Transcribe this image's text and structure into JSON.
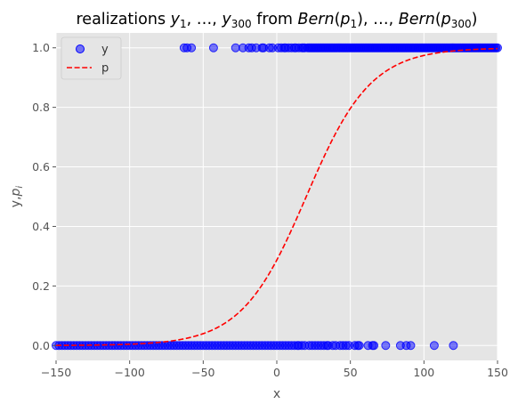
{
  "chart_data": {
    "type": "scatter",
    "title": {
      "prefix": "realizations ",
      "y_first": "y",
      "y_first_sub": "1",
      "sep1": ", …, ",
      "y_last": "y",
      "y_last_sub": "300",
      "mid": " from ",
      "bern1": "Bern",
      "p1_open": "(",
      "p1": "p",
      "p1_sub": "1",
      "p1_close": ")",
      "sep2": ", …, ",
      "bern2": "Bern",
      "p2_open": "(",
      "p2": "p",
      "p2_sub": "300",
      "p2_close": ")"
    },
    "xlabel": "x",
    "ylabel": {
      "part1": "y,",
      "part2": "p",
      "sub": "i"
    },
    "xlim": [
      -150,
      150
    ],
    "ylim": [
      -0.05,
      1.05
    ],
    "xticks": [
      -150,
      -100,
      -50,
      0,
      50,
      100,
      150
    ],
    "xtick_labels": [
      "−150",
      "−100",
      "−50",
      "0",
      "50",
      "100",
      "150"
    ],
    "yticks": [
      0.0,
      0.2,
      0.4,
      0.6,
      0.8,
      1.0
    ],
    "ytick_labels": [
      "0.0",
      "0.2",
      "0.4",
      "0.6",
      "0.8",
      "1.0"
    ],
    "grid": true,
    "legend_position": "top-left",
    "legend": [
      {
        "label": "y",
        "kind": "marker"
      },
      {
        "label": "p",
        "kind": "dashed-line"
      }
    ],
    "colors": {
      "points": "#0000ff",
      "curve": "#ff0000",
      "background": "#e5e5e5",
      "grid": "#ffffff"
    },
    "logistic": {
      "midpoint": 20,
      "scale": 22
    },
    "series": [
      {
        "name": "y",
        "kind": "scatter",
        "ones": [
          -63,
          -61,
          -58,
          -43,
          -28,
          -23,
          -19,
          -17,
          -14,
          -10,
          -9,
          -5,
          -3,
          1,
          3,
          5,
          6,
          8,
          10,
          12,
          13,
          15,
          17,
          18,
          19,
          21,
          22,
          23,
          24,
          25,
          26,
          27,
          28,
          29,
          30,
          31,
          32,
          33,
          34,
          35,
          36,
          37,
          38,
          39,
          40,
          41,
          42,
          43,
          44,
          45,
          46,
          47,
          48,
          49,
          50,
          51,
          52,
          53,
          54,
          55,
          56,
          57,
          58,
          59,
          60,
          61,
          62,
          63,
          64,
          65,
          66,
          67,
          68,
          69,
          70,
          71,
          72,
          73,
          74,
          75,
          76,
          77,
          78,
          79,
          80,
          81,
          82,
          83,
          84,
          85,
          86,
          87,
          88,
          89,
          90,
          91,
          92,
          93,
          94,
          95,
          96,
          97,
          98,
          99,
          100,
          101,
          102,
          103,
          104,
          105,
          106,
          107,
          108,
          109,
          110,
          111,
          112,
          113,
          114,
          115,
          116,
          117,
          118,
          119,
          120,
          121,
          122,
          123,
          124,
          125,
          126,
          127,
          128,
          129,
          130,
          131,
          132,
          133,
          134,
          135,
          136,
          137,
          138,
          139,
          140,
          141,
          142,
          143,
          144,
          145,
          146,
          147,
          148,
          149,
          150
        ],
        "zeros": [
          -150,
          -148,
          -146,
          -144,
          -142,
          -140,
          -138,
          -136,
          -134,
          -132,
          -130,
          -128,
          -126,
          -124,
          -122,
          -120,
          -118,
          -116,
          -114,
          -112,
          -110,
          -108,
          -106,
          -104,
          -102,
          -100,
          -98,
          -96,
          -94,
          -92,
          -90,
          -88,
          -86,
          -84,
          -82,
          -80,
          -78,
          -76,
          -74,
          -72,
          -70,
          -68,
          -66,
          -64,
          -62,
          -60,
          -58,
          -56,
          -54,
          -52,
          -50,
          -48,
          -46,
          -44,
          -42,
          -40,
          -38,
          -36,
          -34,
          -32,
          -30,
          -28,
          -26,
          -24,
          -22,
          -20,
          -18,
          -16,
          -14,
          -12,
          -10,
          -8,
          -6,
          -4,
          -2,
          0,
          2,
          4,
          6,
          8,
          10,
          12,
          14,
          15,
          17,
          19,
          22,
          24,
          26,
          28,
          30,
          32,
          34,
          35,
          38,
          40,
          43,
          45,
          47,
          49,
          53,
          55,
          56,
          62,
          65,
          66,
          74,
          84,
          88,
          91,
          107,
          120
        ]
      },
      {
        "name": "p",
        "kind": "line"
      }
    ]
  }
}
